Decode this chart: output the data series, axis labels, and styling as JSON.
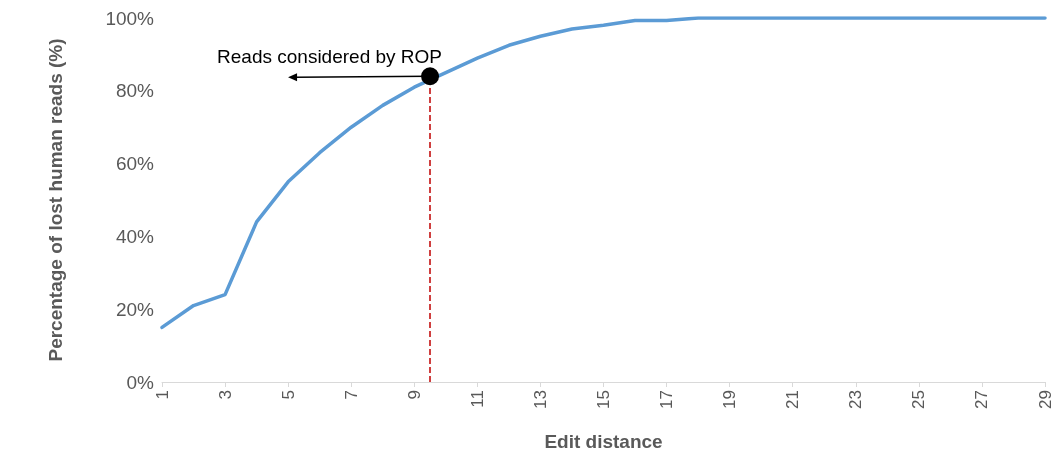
{
  "chart_data": {
    "type": "line",
    "xlabel": "Edit distance",
    "ylabel": "Percentage of lost human reads (%)",
    "x": [
      1,
      2,
      3,
      4,
      5,
      6,
      7,
      8,
      9,
      10,
      11,
      12,
      13,
      14,
      15,
      16,
      17,
      18,
      19,
      20,
      21,
      22,
      23,
      24,
      25,
      26,
      27,
      28,
      29
    ],
    "series": [
      {
        "color": "#5b9bd5",
        "values": [
          15,
          21,
          24,
          44,
          55,
          63,
          70,
          76,
          81,
          85,
          89,
          92.5,
          95,
          97,
          98,
          99.3,
          99.3,
          100,
          100,
          100,
          100,
          100,
          100,
          100,
          100,
          100,
          100,
          100,
          100
        ]
      }
    ],
    "xlim": [
      1,
      29
    ],
    "xticks": [
      1,
      3,
      5,
      7,
      9,
      11,
      13,
      15,
      17,
      19,
      21,
      23,
      25,
      27,
      29
    ],
    "ylim": [
      0,
      100
    ],
    "yticks": [
      {
        "value": 0,
        "label": "0%"
      },
      {
        "value": 20,
        "label": "20%"
      },
      {
        "value": 40,
        "label": "40%"
      },
      {
        "value": 60,
        "label": "60%"
      },
      {
        "value": 80,
        "label": "80%"
      },
      {
        "value": 100,
        "label": "100%"
      }
    ],
    "ref_lines": [
      {
        "axis": "x",
        "value": 9.5,
        "label": null,
        "color": "#c00000",
        "line_style": "dashed"
      }
    ],
    "annotations": [
      {
        "text": "Reads considered by ROP",
        "x": 9.5,
        "y": 84
      }
    ],
    "grid": false,
    "marker": "none",
    "line_style": "solid"
  }
}
